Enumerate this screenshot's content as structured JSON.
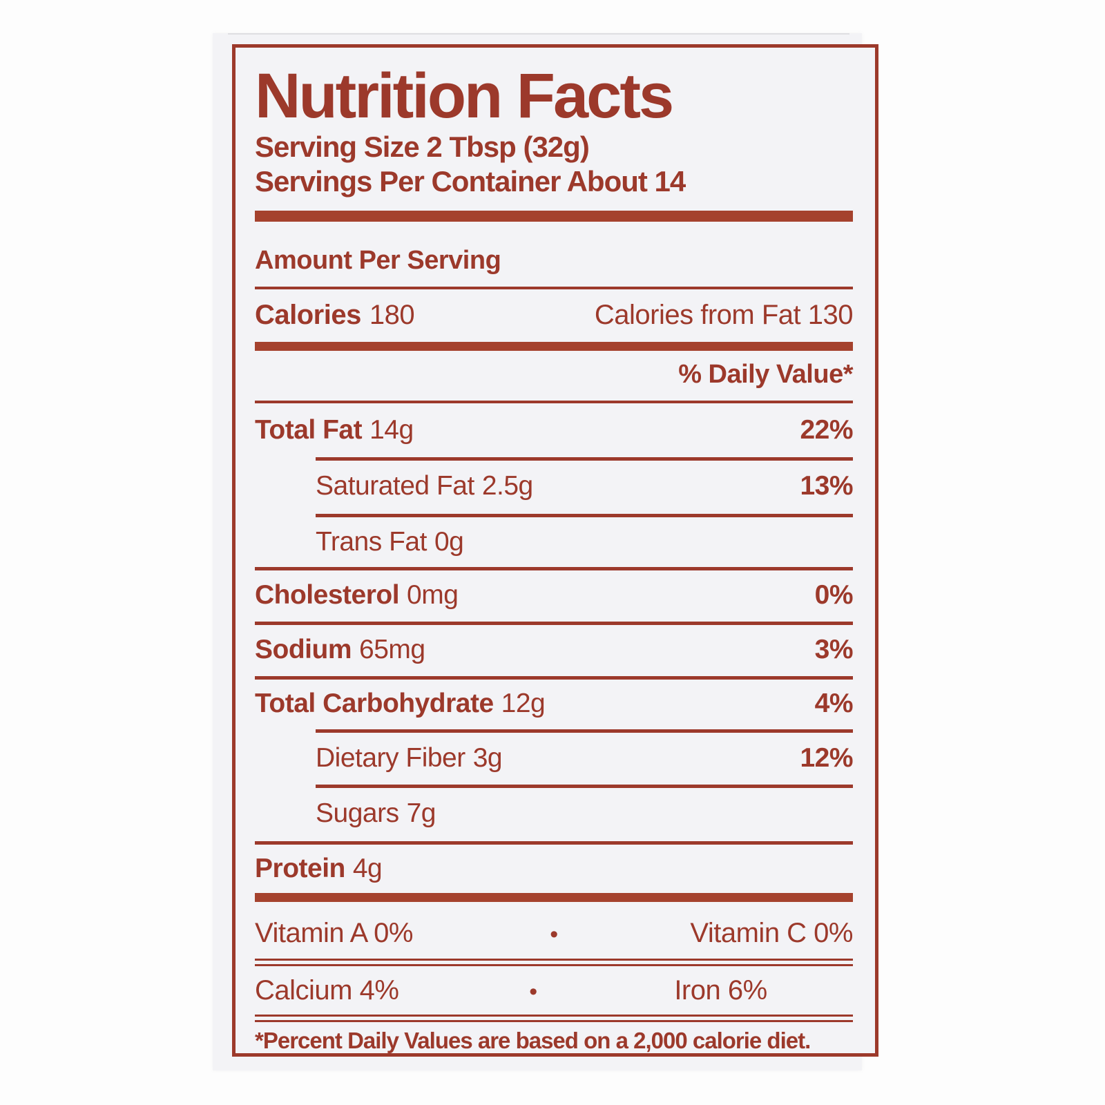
{
  "colors": {
    "ink": "#9c392b",
    "bar": "#a5422e",
    "paper": "#f3f3f6",
    "page": "#fdfdfd"
  },
  "label": {
    "title": "Nutrition Facts",
    "serving_size": "Serving Size 2 Tbsp (32g)",
    "servings_per_container": "Servings Per Container About 14",
    "amount_per_serving": "Amount Per Serving",
    "calories": {
      "label": "Calories",
      "value": "180",
      "from_fat": "Calories from Fat 130"
    },
    "daily_value_header": "% Daily Value*",
    "nutrients": [
      {
        "name": "Total Fat",
        "amount": "14g",
        "daily_value": "22%"
      },
      {
        "name": "Saturated Fat",
        "amount": "2.5g",
        "daily_value": "13%"
      },
      {
        "name": "Trans Fat",
        "amount": "0g",
        "daily_value": ""
      },
      {
        "name": "Cholesterol",
        "amount": "0mg",
        "daily_value": "0%"
      },
      {
        "name": "Sodium",
        "amount": "65mg",
        "daily_value": "3%"
      },
      {
        "name": "Total Carbohydrate",
        "amount": "12g",
        "daily_value": "4%"
      },
      {
        "name": "Dietary Fiber",
        "amount": "3g",
        "daily_value": "12%"
      },
      {
        "name": "Sugars",
        "amount": "7g",
        "daily_value": ""
      },
      {
        "name": "Protein",
        "amount": "4g",
        "daily_value": ""
      }
    ],
    "micronutrients": [
      {
        "left": "Vitamin A 0%",
        "bullet": "•",
        "right": "Vitamin C 0%"
      },
      {
        "left": "Calcium 4%",
        "bullet": "•",
        "right": "Iron 6%"
      }
    ],
    "footnote": "*Percent Daily Values are based on a 2,000 calorie diet."
  }
}
